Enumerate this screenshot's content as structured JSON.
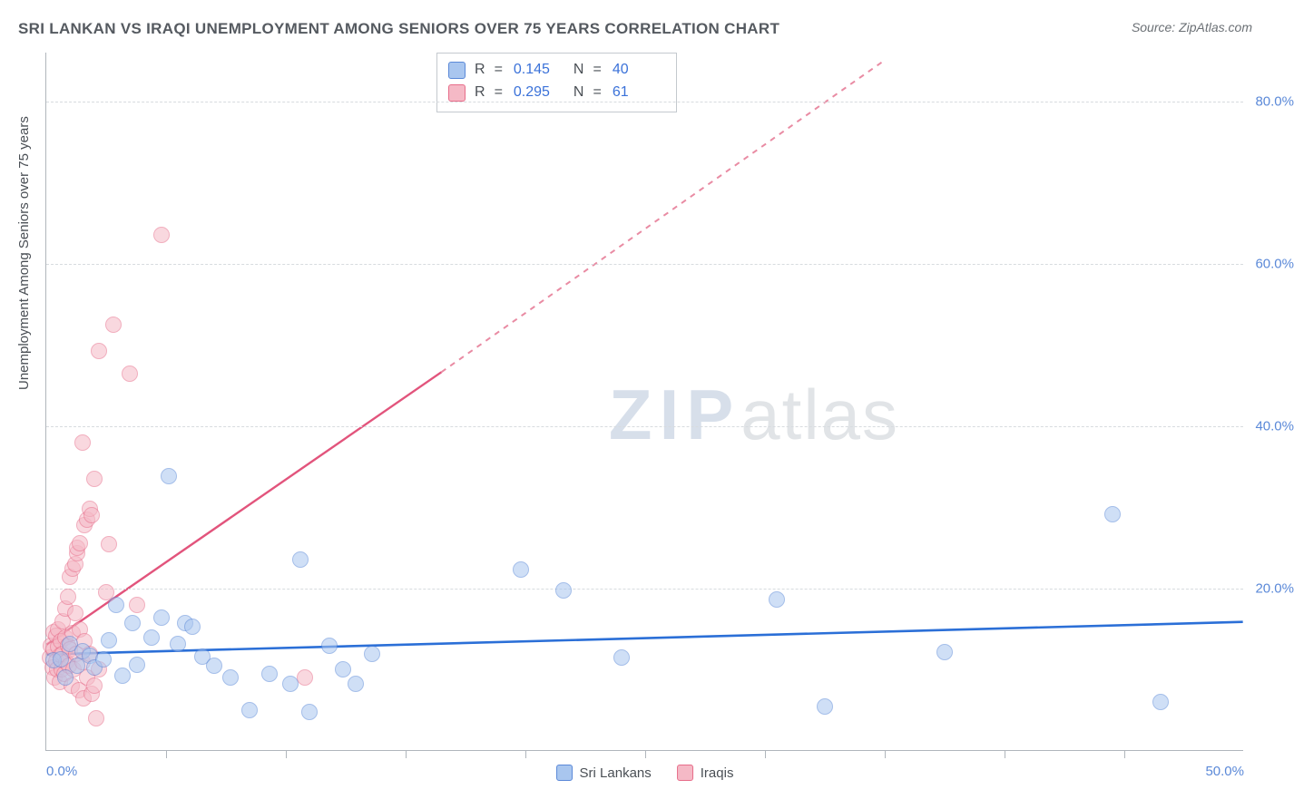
{
  "title": "SRI LANKAN VS IRAQI UNEMPLOYMENT AMONG SENIORS OVER 75 YEARS CORRELATION CHART",
  "source": "Source: ZipAtlas.com",
  "y_axis_label": "Unemployment Among Seniors over 75 years",
  "watermark_bold": "ZIP",
  "watermark_light": "atlas",
  "chart": {
    "type": "scatter",
    "xlim": [
      0,
      50
    ],
    "ylim": [
      0,
      86
    ],
    "x_ticks": [
      0,
      25,
      50
    ],
    "x_tick_labels": [
      "0.0%",
      "",
      "50.0%"
    ],
    "x_minor_ticks": [
      5,
      10,
      15,
      20,
      25,
      30,
      35,
      40,
      45
    ],
    "y_gridlines": [
      20,
      40,
      60,
      80
    ],
    "y_tick_labels": [
      "20.0%",
      "40.0%",
      "60.0%",
      "80.0%"
    ],
    "background_color": "#ffffff",
    "grid_color": "#d7dbdf",
    "axis_color": "#b0b6bc",
    "title_color": "#555a60",
    "label_color": "#4a4f55",
    "tick_label_color": "#5b89d8",
    "title_fontsize": 17,
    "label_fontsize": 15,
    "tick_fontsize": 15,
    "marker_radius": 9,
    "marker_opacity": 0.55,
    "marker_border_opacity": 0.9,
    "series": [
      {
        "name": "Sri Lankans",
        "fill": "#a9c6ef",
        "stroke": "#5b89d8",
        "trend": {
          "x1": 0,
          "y1": 11.8,
          "x2": 50,
          "y2": 15.8,
          "color": "#2b6fd7",
          "width": 2.6,
          "dash": "none"
        },
        "R": "0.145",
        "N": "40",
        "points": [
          [
            0.3,
            11.2
          ],
          [
            0.6,
            11.3
          ],
          [
            0.8,
            9.0
          ],
          [
            1.0,
            13.2
          ],
          [
            1.3,
            10.5
          ],
          [
            1.5,
            12.3
          ],
          [
            1.8,
            11.7
          ],
          [
            2.0,
            10.3
          ],
          [
            2.4,
            11.3
          ],
          [
            2.6,
            13.6
          ],
          [
            2.9,
            18.0
          ],
          [
            3.2,
            9.3
          ],
          [
            3.6,
            15.8
          ],
          [
            3.8,
            10.6
          ],
          [
            4.4,
            14.0
          ],
          [
            4.8,
            16.4
          ],
          [
            5.1,
            33.8
          ],
          [
            5.5,
            13.2
          ],
          [
            5.8,
            15.7
          ],
          [
            6.1,
            15.3
          ],
          [
            6.5,
            11.6
          ],
          [
            7.0,
            10.5
          ],
          [
            7.7,
            9.0
          ],
          [
            8.5,
            5.0
          ],
          [
            9.3,
            9.5
          ],
          [
            10.2,
            8.3
          ],
          [
            10.6,
            23.6
          ],
          [
            11.0,
            4.8
          ],
          [
            11.8,
            13.0
          ],
          [
            12.4,
            10.0
          ],
          [
            12.9,
            8.3
          ],
          [
            13.6,
            12.0
          ],
          [
            19.8,
            22.3
          ],
          [
            21.6,
            19.8
          ],
          [
            24.0,
            11.5
          ],
          [
            30.5,
            18.7
          ],
          [
            32.5,
            5.5
          ],
          [
            37.5,
            12.2
          ],
          [
            44.5,
            29.2
          ],
          [
            46.5,
            6.0
          ]
        ]
      },
      {
        "name": "Iraqis",
        "fill": "#f5b9c6",
        "stroke": "#e76d8a",
        "trend_solid": {
          "x1": 0,
          "y1": 13.0,
          "x2": 16.5,
          "y2": 46.6,
          "color": "#e2547c",
          "width": 2.4
        },
        "trend_dashed": {
          "x1": 16.5,
          "y1": 46.6,
          "x2": 35,
          "y2": 85.0,
          "color": "#e98ba3",
          "width": 2.0,
          "dash": "6,6"
        },
        "R": "0.295",
        "N": "61",
        "points": [
          [
            0.15,
            11.5
          ],
          [
            0.2,
            13.0
          ],
          [
            0.25,
            10.3
          ],
          [
            0.3,
            12.5
          ],
          [
            0.3,
            14.6
          ],
          [
            0.35,
            9.0
          ],
          [
            0.4,
            11.1
          ],
          [
            0.4,
            14.2
          ],
          [
            0.45,
            10.0
          ],
          [
            0.5,
            12.8
          ],
          [
            0.5,
            15.0
          ],
          [
            0.55,
            8.5
          ],
          [
            0.6,
            11.8
          ],
          [
            0.6,
            13.5
          ],
          [
            0.65,
            10.0
          ],
          [
            0.7,
            12.0
          ],
          [
            0.7,
            16.0
          ],
          [
            0.75,
            9.5
          ],
          [
            0.8,
            14.0
          ],
          [
            0.8,
            17.5
          ],
          [
            0.85,
            11.0
          ],
          [
            0.9,
            13.0
          ],
          [
            0.9,
            19.0
          ],
          [
            0.95,
            10.5
          ],
          [
            1.0,
            12.5
          ],
          [
            1.0,
            21.5
          ],
          [
            1.05,
            8.0
          ],
          [
            1.1,
            14.5
          ],
          [
            1.1,
            22.5
          ],
          [
            1.15,
            10.0
          ],
          [
            1.2,
            17.0
          ],
          [
            1.2,
            23.0
          ],
          [
            1.25,
            12.0
          ],
          [
            1.3,
            24.3
          ],
          [
            1.3,
            25.0
          ],
          [
            1.35,
            7.5
          ],
          [
            1.4,
            15.0
          ],
          [
            1.4,
            25.6
          ],
          [
            1.5,
            11.0
          ],
          [
            1.5,
            38.0
          ],
          [
            1.55,
            6.5
          ],
          [
            1.6,
            13.5
          ],
          [
            1.6,
            27.8
          ],
          [
            1.7,
            9.0
          ],
          [
            1.7,
            28.5
          ],
          [
            1.8,
            12.0
          ],
          [
            1.8,
            29.8
          ],
          [
            1.9,
            7.0
          ],
          [
            1.9,
            29.0
          ],
          [
            2.0,
            8.0
          ],
          [
            2.0,
            33.5
          ],
          [
            2.1,
            4.0
          ],
          [
            2.2,
            10.0
          ],
          [
            2.2,
            49.2
          ],
          [
            2.5,
            19.5
          ],
          [
            2.6,
            25.5
          ],
          [
            2.8,
            52.5
          ],
          [
            3.5,
            46.5
          ],
          [
            3.8,
            18.0
          ],
          [
            4.8,
            63.5
          ],
          [
            10.8,
            9.0
          ]
        ]
      }
    ]
  },
  "legend": {
    "series1_label": "Sri Lankans",
    "series2_label": "Iraqis"
  },
  "stats_box": {
    "R_label": "R",
    "N_label": "N",
    "eq": "="
  }
}
